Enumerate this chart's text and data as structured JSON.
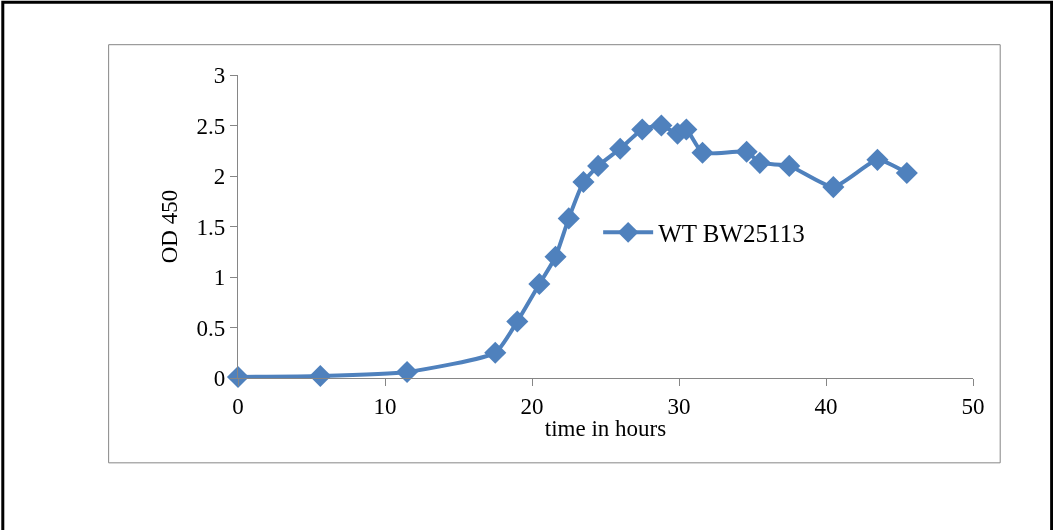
{
  "chart_data": {
    "type": "line",
    "xlabel": "time in hours",
    "ylabel": "OD 450",
    "x": [
      0,
      5.6,
      11.5,
      17.5,
      19.0,
      20.5,
      21.6,
      22.5,
      23.5,
      24.5,
      26.0,
      27.5,
      28.8,
      29.9,
      30.5,
      31.6,
      34.6,
      35.5,
      37.5,
      40.5,
      43.5,
      45.5
    ],
    "series": [
      {
        "name": "WT BW25113",
        "color": "#4f81bd",
        "values": [
          0.01,
          0.02,
          0.06,
          0.25,
          0.56,
          0.93,
          1.2,
          1.58,
          1.94,
          2.1,
          2.27,
          2.46,
          2.5,
          2.42,
          2.46,
          2.23,
          2.24,
          2.13,
          2.1,
          1.89,
          2.16,
          2.03
        ]
      }
    ],
    "xlim": [
      0,
      50
    ],
    "xticks": [
      0,
      10,
      20,
      30,
      40,
      50
    ],
    "ylim": [
      0,
      3
    ],
    "yticks": [
      0,
      0.5,
      1,
      1.5,
      2,
      2.5,
      3
    ],
    "legend": "right",
    "marker": "diamond",
    "line_style": "solid"
  }
}
